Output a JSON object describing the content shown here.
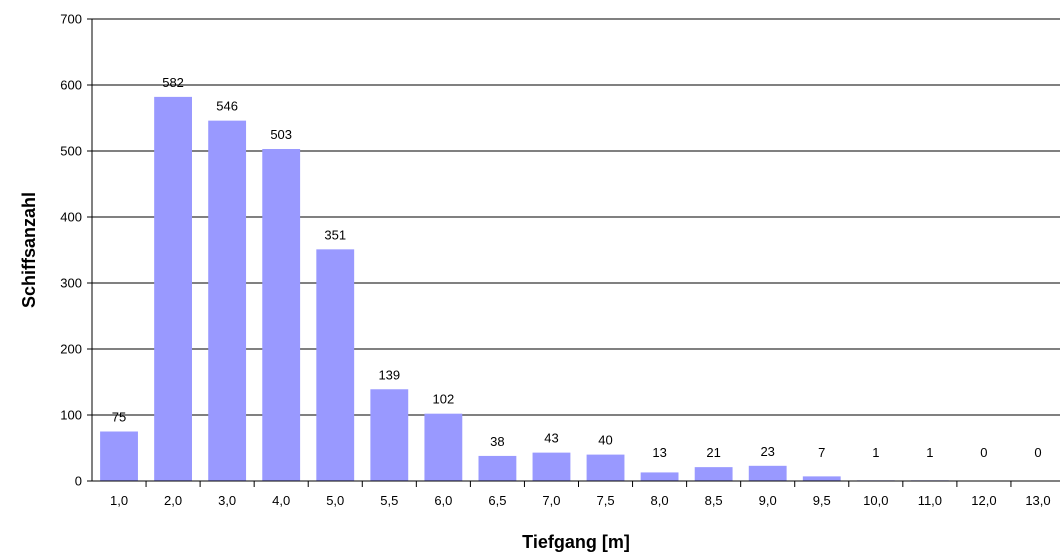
{
  "chart_data": {
    "type": "bar",
    "xlabel": "Tiefgang [m]",
    "ylabel": "Schiffsanzahl",
    "ylim": [
      0,
      700
    ],
    "yticks": [
      "0",
      "100",
      "200",
      "300",
      "400",
      "500",
      "600",
      "700"
    ],
    "categories": [
      "1,0",
      "2,0",
      "3,0",
      "4,0",
      "5,0",
      "5,5",
      "6,0",
      "6,5",
      "7,0",
      "7,5",
      "8,0",
      "8,5",
      "9,0",
      "9,5",
      "10,0",
      "11,0",
      "12,0",
      "13,0"
    ],
    "values": [
      75,
      582,
      546,
      503,
      351,
      139,
      102,
      38,
      43,
      40,
      13,
      21,
      23,
      7,
      1,
      1,
      0,
      0
    ],
    "data_labels": [
      "75",
      "582",
      "546",
      "503",
      "351",
      "139",
      "102",
      "38",
      "43",
      "40",
      "13",
      "21",
      "23",
      "7",
      "1",
      "1",
      "0",
      "0"
    ],
    "grid": true,
    "colors": {
      "bar": "#9999ff",
      "grid": "#000000",
      "axis": "#000000"
    }
  }
}
